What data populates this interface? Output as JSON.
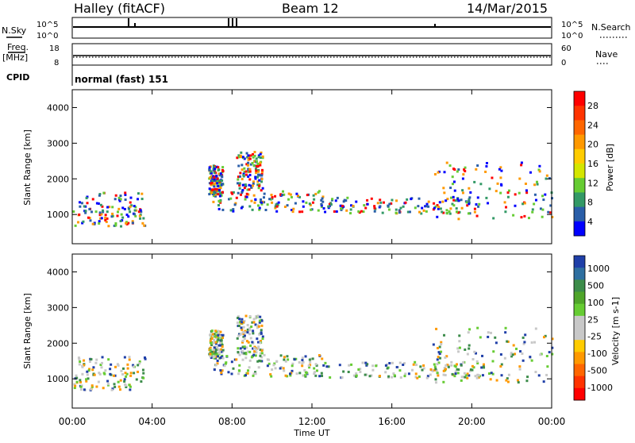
{
  "header": {
    "station": "Halley (fitACF)",
    "beam": "Beam 12",
    "date": "14/Mar/2015"
  },
  "status_panels": {
    "nsky_label": "N.Sky",
    "nsky_ticks": [
      "10^5",
      "10^0"
    ],
    "nsearch_label": "N.Search",
    "nsearch_ticks": [
      "10^5",
      "10^0"
    ],
    "freq_label": "Freq.",
    "freq_unit": "[MHz]",
    "freq_ticks": [
      "18",
      "8"
    ],
    "nave_label": "Nave",
    "nave_ticks": [
      "60",
      "0"
    ],
    "cpid_label": "CPID",
    "cpid_value": "normal (fast) 151"
  },
  "chart_data": [
    {
      "type": "heatmap",
      "name": "power-panel",
      "ylabel": "Slant Range [km]",
      "xlabel": "",
      "ylim": [
        180,
        4500
      ],
      "yticks": [
        1000,
        2000,
        3000,
        4000
      ],
      "colorbar": {
        "label": "Power [dB]",
        "ticks": [
          "28",
          "24",
          "20",
          "16",
          "12",
          "8",
          "4"
        ],
        "colors": [
          "#ff0000",
          "#ff3300",
          "#ff6600",
          "#ff9900",
          "#ffcc00",
          "#d4e600",
          "#66cc33",
          "#339966",
          "#2a5ea8",
          "#0000ff"
        ]
      }
    },
    {
      "type": "heatmap",
      "name": "velocity-panel",
      "ylabel": "Slant Range [km]",
      "xlabel": "Time UT",
      "ylim": [
        180,
        4500
      ],
      "yticks": [
        1000,
        2000,
        3000,
        4000
      ],
      "xticks": [
        "00:00",
        "04:00",
        "08:00",
        "12:00",
        "16:00",
        "20:00",
        "00:00"
      ],
      "colorbar": {
        "label": "Velocity [m s-1]",
        "ticks": [
          "1000",
          "500",
          "100",
          "25",
          "-25",
          "-100",
          "-500",
          "-1000"
        ],
        "colors": [
          "#1f3fa8",
          "#2e6fa0",
          "#3c8c4a",
          "#4fa52a",
          "#66cc33",
          "#c8c8c8",
          "#c8c8c8",
          "#ffcc00",
          "#ff9900",
          "#ff6600",
          "#ff3300",
          "#ff0000"
        ]
      }
    }
  ]
}
